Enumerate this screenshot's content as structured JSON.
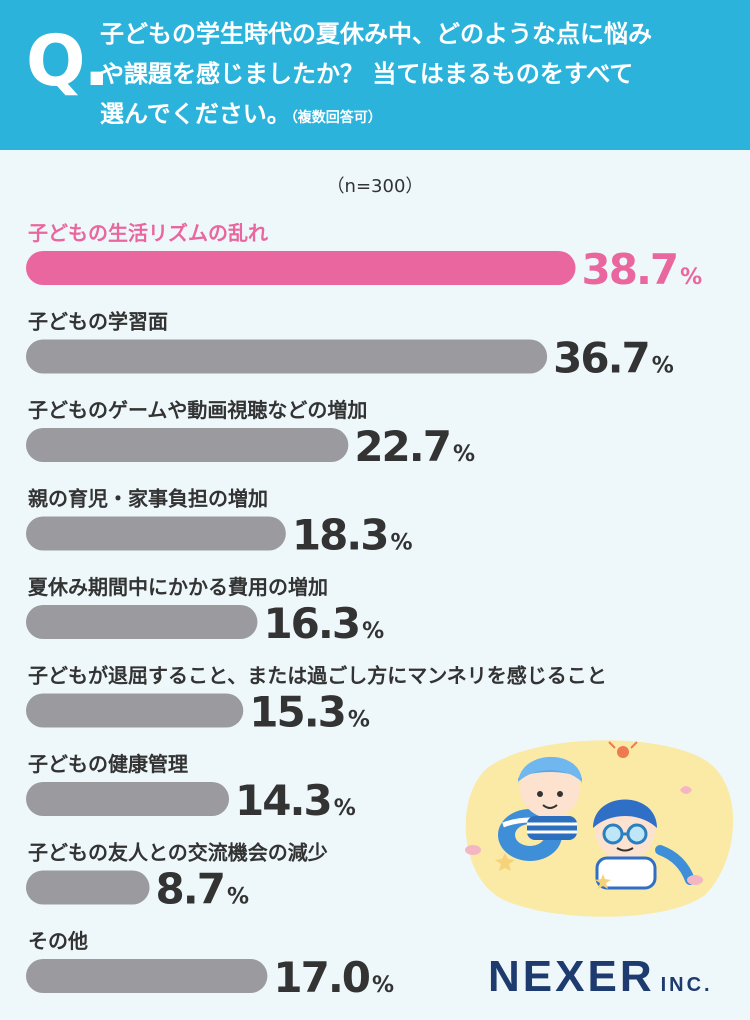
{
  "header": {
    "q_mark": "Q.",
    "question_line1": "子どもの学生時代の夏休み中、どのような点に悩み",
    "question_line2": "や課題を感じましたか？ 当てはまるものをすべて",
    "question_line3": "選んでください。",
    "question_note": "（複数回答可）"
  },
  "sample_size": "（n=300）",
  "colors": {
    "header": "#2bb3dc",
    "highlight": "#e9679e",
    "bar": "#9b9b9f",
    "background": "#eef8fb"
  },
  "chart_data": {
    "type": "bar",
    "orientation": "horizontal",
    "unit": "%",
    "categories": [
      "子どもの生活リズムの乱れ",
      "子どもの学習面",
      "子どものゲームや動画視聴などの増加",
      "親の育児・家事負担の増加",
      "夏休み期間中にかかる費用の増加",
      "子どもが退屈すること、または過ごし方にマンネリを感じること",
      "子どもの健康管理",
      "子どもの友人との交流機会の減少",
      "その他"
    ],
    "values": [
      38.7,
      36.7,
      22.7,
      18.3,
      16.3,
      15.3,
      14.3,
      8.7,
      17.0
    ],
    "labels": [
      "38.7",
      "36.7",
      "22.7",
      "18.3",
      "16.3",
      "15.3",
      "14.3",
      "8.7",
      "17.0"
    ],
    "highlight_index": 0
  },
  "logo": {
    "main": "NEXER",
    "sub": "INC."
  },
  "illustration": {
    "icon": "children-swimming-illustration"
  }
}
